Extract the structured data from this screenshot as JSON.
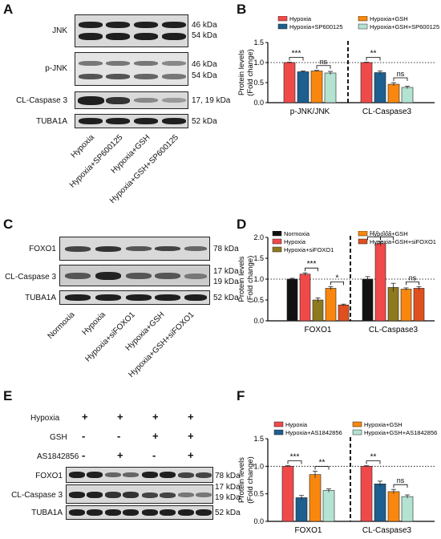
{
  "panels": {
    "A": {
      "letter": "A",
      "blots": [
        {
          "label": "JNK",
          "kda": [
            "46 kDa",
            "54 kDa"
          ]
        },
        {
          "label": "p-JNK",
          "kda": [
            "46 kDa",
            "54 kDa"
          ]
        },
        {
          "label": "CL-Caspase 3",
          "kda": [
            "17, 19 kDa"
          ]
        },
        {
          "label": "TUBA1A",
          "kda": [
            "52 kDa"
          ]
        }
      ],
      "lanes": [
        "Hypoxia",
        "Hypoxia+SP600125",
        "Hypoxia+GSH",
        "Hypoxia+GSH+SP600125"
      ]
    },
    "C": {
      "letter": "C",
      "blots": [
        {
          "label": "FOXO1",
          "kda": [
            "78 kDa"
          ]
        },
        {
          "label": "CL-Caspase 3",
          "kda": [
            "17 kDa",
            "19 kDa"
          ]
        },
        {
          "label": "TUBA1A",
          "kda": [
            "52 kDa"
          ]
        }
      ],
      "lanes": [
        "Normoxia",
        "Hypoxia",
        "Hypoxia+siFOXO1",
        "Hypoxia+GSH",
        "Hypoxia+GSH+siFOXO1"
      ]
    },
    "E": {
      "letter": "E",
      "rows": [
        {
          "label": "Hypoxia",
          "signs": [
            "+",
            "+",
            "+",
            "+"
          ]
        },
        {
          "label": "GSH",
          "signs": [
            "-",
            "-",
            "+",
            "+"
          ]
        },
        {
          "label": "AS1842856",
          "signs": [
            "-",
            "+",
            "-",
            "+"
          ]
        }
      ],
      "blots": [
        {
          "label": "FOXO1",
          "kda": [
            "78 kDa"
          ]
        },
        {
          "label": "CL-Caspase 3",
          "kda": [
            "17 kDa",
            "19 kDa"
          ]
        },
        {
          "label": "TUBA1A",
          "kda": [
            "52 kDa"
          ]
        }
      ]
    }
  },
  "chart_data": [
    {
      "panel": "B",
      "type": "bar",
      "ylabel": "Protein levels\n(Fold change)",
      "ylim": [
        0,
        1.5
      ],
      "yticks": [
        "0.0",
        "0.5",
        "1.0",
        "1.5"
      ],
      "groups": [
        "p-JNK/JNK",
        "CL-Caspase3"
      ],
      "series": [
        {
          "name": "Hypoxia",
          "color": "#f0494a",
          "values": [
            1.0,
            1.0
          ],
          "errors": [
            0.01,
            0.01
          ]
        },
        {
          "name": "Hypoxia+SP600125",
          "color": "#1d5f8e",
          "values": [
            0.77,
            0.75
          ],
          "errors": [
            0.02,
            0.04
          ]
        },
        {
          "name": "Hypoxia+GSH",
          "color": "#f9870e",
          "values": [
            0.79,
            0.46
          ],
          "errors": [
            0.015,
            0.04
          ]
        },
        {
          "name": "Hypoxia+GSH+SP600125",
          "color": "#b4e3d2",
          "values": [
            0.74,
            0.38
          ],
          "errors": [
            0.04,
            0.03
          ]
        }
      ],
      "annotations": [
        {
          "group": 0,
          "from": 0,
          "to": 1,
          "text": "***"
        },
        {
          "group": 0,
          "from": 2,
          "to": 3,
          "text": "ns"
        },
        {
          "group": 1,
          "from": 0,
          "to": 1,
          "text": "**"
        },
        {
          "group": 1,
          "from": 2,
          "to": 3,
          "text": "ns"
        }
      ]
    },
    {
      "panel": "D",
      "type": "bar",
      "ylabel": "Protein levels\n(Fold change)",
      "ylim": [
        0,
        2.0
      ],
      "yticks": [
        "0.0",
        "0.5",
        "1.0",
        "1.5",
        "2.0"
      ],
      "groups": [
        "FOXO1",
        "CL-Caspase3"
      ],
      "series": [
        {
          "name": "Normoxia",
          "color": "#111111",
          "values": [
            1.0,
            1.0
          ],
          "errors": [
            0.02,
            0.06
          ]
        },
        {
          "name": "Hypoxia",
          "color": "#f0494a",
          "values": [
            1.12,
            1.85
          ],
          "errors": [
            0.03,
            0.05
          ]
        },
        {
          "name": "Hypoxia+siFOXO1",
          "color": "#8e7a1e",
          "values": [
            0.5,
            0.8
          ],
          "errors": [
            0.05,
            0.1
          ]
        },
        {
          "name": "Hypoxia+GSH",
          "color": "#f9870e",
          "values": [
            0.78,
            0.76
          ],
          "errors": [
            0.04,
            0.03
          ]
        },
        {
          "name": "Hypoxia+GSH+siFOXO1",
          "color": "#e0501f",
          "values": [
            0.38,
            0.78
          ],
          "errors": [
            0.02,
            0.04
          ]
        }
      ],
      "annotations": [
        {
          "group": 0,
          "from": 1,
          "to": 2,
          "text": "***"
        },
        {
          "group": 0,
          "from": 3,
          "to": 4,
          "text": "*"
        },
        {
          "group": 1,
          "from": 0,
          "to": 1,
          "text": "***"
        },
        {
          "group": 1,
          "from": 1,
          "to": 2,
          "text": "***"
        },
        {
          "group": 1,
          "from": 3,
          "to": 4,
          "text": "ns"
        }
      ]
    },
    {
      "panel": "F",
      "type": "bar",
      "ylabel": "Protein levels\n(Fold change)",
      "ylim": [
        0,
        1.5
      ],
      "yticks": [
        "0.0",
        "0.5",
        "1.0",
        "1.5"
      ],
      "groups": [
        "FOXO1",
        "CL-Caspase3"
      ],
      "series": [
        {
          "name": "Hypoxia",
          "color": "#f0494a",
          "values": [
            1.0,
            1.0
          ],
          "errors": [
            0.01,
            0.01
          ]
        },
        {
          "name": "Hypoxia+AS1842856",
          "color": "#1d5f8e",
          "values": [
            0.43,
            0.68
          ],
          "errors": [
            0.04,
            0.05
          ]
        },
        {
          "name": "Hypoxia+GSH",
          "color": "#f9870e",
          "values": [
            0.85,
            0.54
          ],
          "errors": [
            0.06,
            0.04
          ]
        },
        {
          "name": "Hypoxia+GSH+AS1842856",
          "color": "#b4e3d2",
          "values": [
            0.56,
            0.45
          ],
          "errors": [
            0.03,
            0.03
          ]
        }
      ],
      "annotations": [
        {
          "group": 0,
          "from": 0,
          "to": 1,
          "text": "***"
        },
        {
          "group": 0,
          "from": 2,
          "to": 3,
          "text": "**"
        },
        {
          "group": 1,
          "from": 0,
          "to": 1,
          "text": "**"
        },
        {
          "group": 1,
          "from": 2,
          "to": 3,
          "text": "ns"
        }
      ]
    }
  ]
}
